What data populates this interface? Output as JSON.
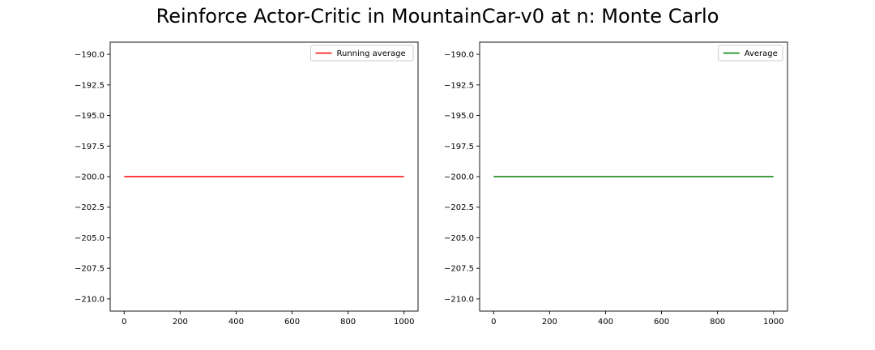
{
  "title": "Reinforce Actor-Critic in MountainCar-v0 at n: Monte Carlo",
  "chart_data": [
    {
      "type": "line",
      "xlim": [
        -50,
        1050
      ],
      "ylim": [
        -211,
        -189
      ],
      "xticks": [
        0,
        200,
        400,
        600,
        800,
        1000
      ],
      "xtick_labels": [
        "0",
        "200",
        "400",
        "600",
        "800",
        "1000"
      ],
      "yticks": [
        -190.0,
        -192.5,
        -195.0,
        -197.5,
        -200.0,
        -202.5,
        -205.0,
        -207.5,
        -210.0
      ],
      "ytick_labels": [
        "−190.0",
        "−192.5",
        "−195.0",
        "−197.5",
        "−200.0",
        "−202.5",
        "−205.0",
        "−207.5",
        "−210.0"
      ],
      "grid": false,
      "legend_position": "top-right",
      "series": [
        {
          "name": "Running average",
          "color": "#ff0000",
          "x": [
            0,
            1000
          ],
          "y": [
            -200,
            -200
          ]
        }
      ]
    },
    {
      "type": "line",
      "xlim": [
        -50,
        1050
      ],
      "ylim": [
        -211,
        -189
      ],
      "xticks": [
        0,
        200,
        400,
        600,
        800,
        1000
      ],
      "xtick_labels": [
        "0",
        "200",
        "400",
        "600",
        "800",
        "1000"
      ],
      "yticks": [
        -190.0,
        -192.5,
        -195.0,
        -197.5,
        -200.0,
        -202.5,
        -205.0,
        -207.5,
        -210.0
      ],
      "ytick_labels": [
        "−190.0",
        "−192.5",
        "−195.0",
        "−197.5",
        "−200.0",
        "−202.5",
        "−205.0",
        "−207.5",
        "−210.0"
      ],
      "grid": false,
      "legend_position": "top-right",
      "series": [
        {
          "name": "Average",
          "color": "#008000",
          "x": [
            0,
            1000
          ],
          "y": [
            -200,
            -200
          ]
        }
      ]
    }
  ]
}
